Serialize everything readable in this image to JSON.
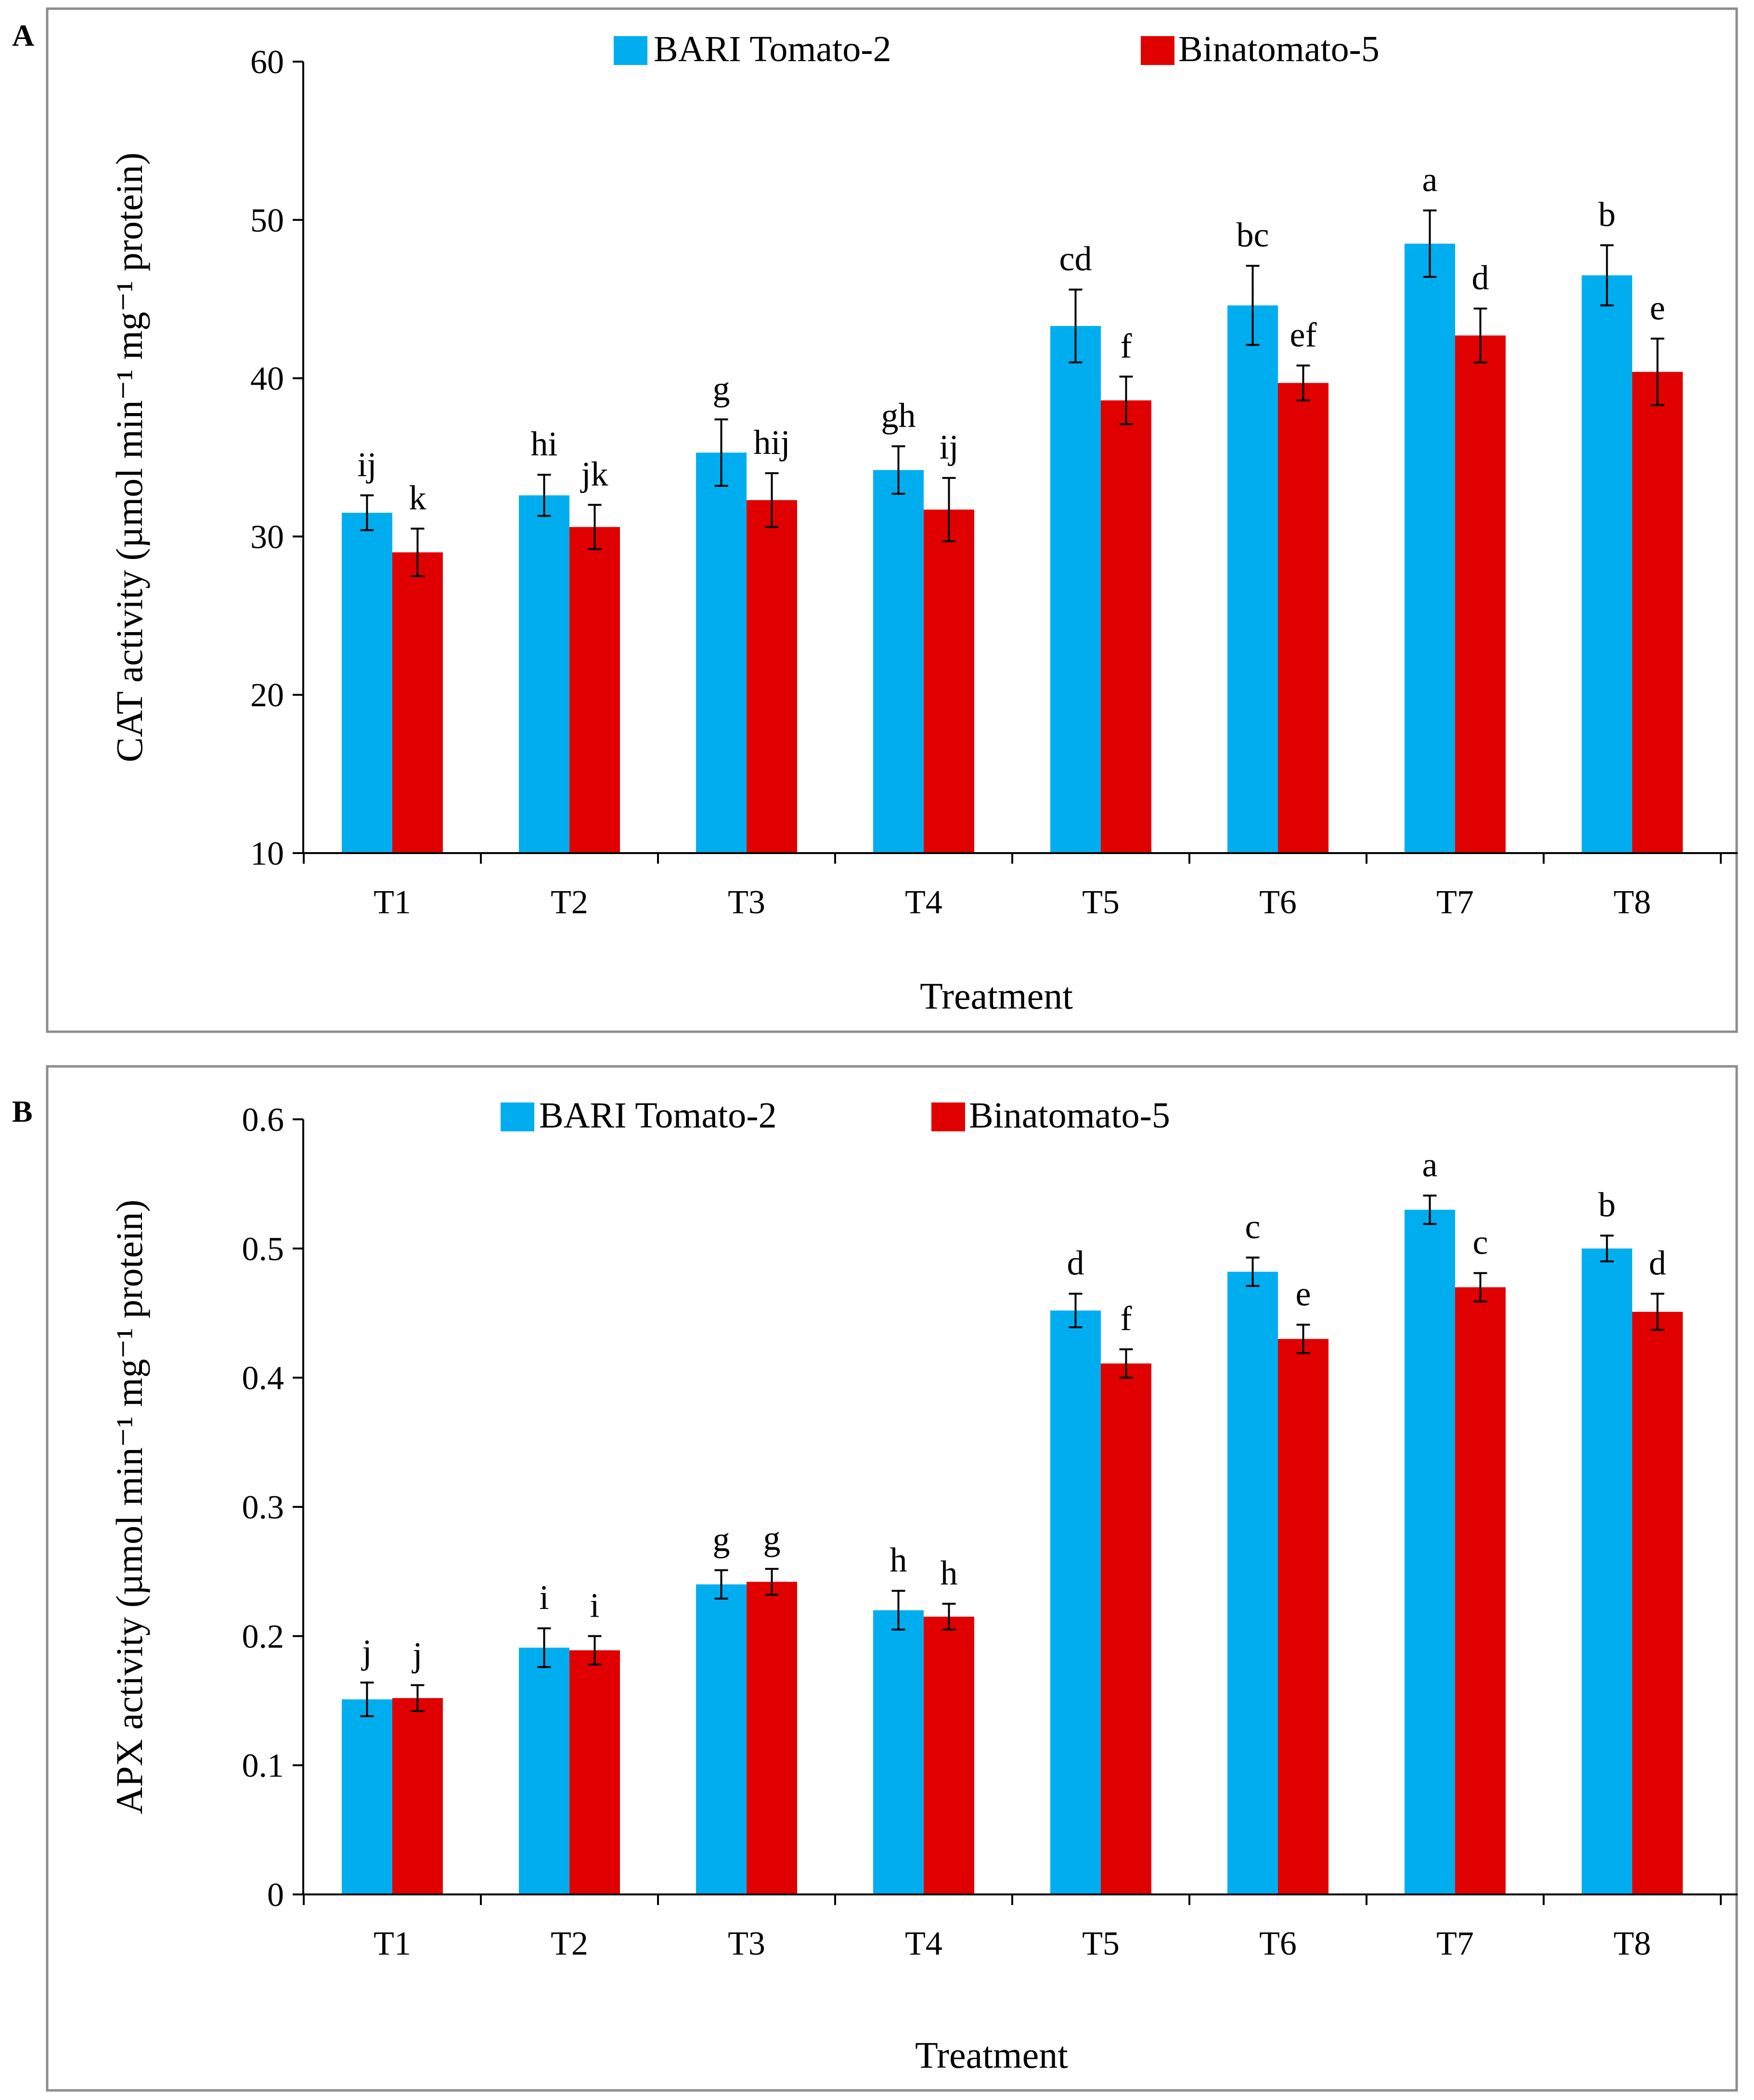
{
  "colors": {
    "series_1": "#00AEEF",
    "series_2": "#E00000",
    "frame": "#8C8C8C",
    "axis": "#000000"
  },
  "chart_data": [
    {
      "panel": "A",
      "type": "bar",
      "title": "",
      "xlabel": "Treatment",
      "ylabel": "CAT activity (µmol min⁻¹ mg⁻¹ protein)",
      "ylim": [
        10,
        60
      ],
      "yticks": [
        10,
        20,
        30,
        40,
        50,
        60
      ],
      "yticks_labels": [
        "10",
        "20",
        "30",
        "40",
        "50",
        "60"
      ],
      "grid": false,
      "legend_position": "top-center",
      "categories": [
        "T1",
        "T2",
        "T3",
        "T4",
        "T5",
        "T6",
        "T7",
        "T8"
      ],
      "series": [
        {
          "name": "BARI Tomato-2",
          "values": [
            31.5,
            32.6,
            35.3,
            34.2,
            43.3,
            44.6,
            48.5,
            46.5
          ],
          "errors": [
            1.1,
            1.3,
            2.1,
            1.5,
            2.3,
            2.5,
            2.1,
            1.9
          ],
          "letters": [
            "ij",
            "hi",
            "g",
            "gh",
            "cd",
            "bc",
            "a",
            "b"
          ]
        },
        {
          "name": "Binatomato-5",
          "values": [
            29.0,
            30.6,
            32.3,
            31.7,
            38.6,
            39.7,
            42.7,
            40.4
          ],
          "errors": [
            1.5,
            1.4,
            1.7,
            2.0,
            1.5,
            1.1,
            1.7,
            2.1
          ],
          "letters": [
            "k",
            "jk",
            "hij",
            "ij",
            "f",
            "ef",
            "d",
            "e"
          ]
        }
      ]
    },
    {
      "panel": "B",
      "type": "bar",
      "title": "",
      "xlabel": "Treatment",
      "ylabel": "APX activity (µmol min⁻¹ mg⁻¹ protein)",
      "ylim": [
        0,
        0.6
      ],
      "yticks": [
        0,
        0.1,
        0.2,
        0.3,
        0.4,
        0.5,
        0.6
      ],
      "yticks_labels": [
        "0",
        "0.1",
        "0.2",
        "0.3",
        "0.4",
        "0.5",
        "0.6"
      ],
      "grid": false,
      "legend_position": "top-center",
      "categories": [
        "T1",
        "T2",
        "T3",
        "T4",
        "T5",
        "T6",
        "T7",
        "T8"
      ],
      "series": [
        {
          "name": "BARI Tomato-2",
          "values": [
            0.151,
            0.191,
            0.24,
            0.22,
            0.452,
            0.482,
            0.53,
            0.5
          ],
          "errors": [
            0.013,
            0.015,
            0.011,
            0.015,
            0.013,
            0.011,
            0.011,
            0.01
          ],
          "letters": [
            "j",
            "i",
            "g",
            "h",
            "d",
            "c",
            "a",
            "b"
          ]
        },
        {
          "name": "Binatomato-5",
          "values": [
            0.152,
            0.189,
            0.242,
            0.215,
            0.411,
            0.43,
            0.47,
            0.451
          ],
          "errors": [
            0.01,
            0.011,
            0.01,
            0.01,
            0.011,
            0.011,
            0.011,
            0.014
          ],
          "letters": [
            "j",
            "i",
            "g",
            "h",
            "f",
            "e",
            "c",
            "d"
          ]
        }
      ]
    }
  ]
}
